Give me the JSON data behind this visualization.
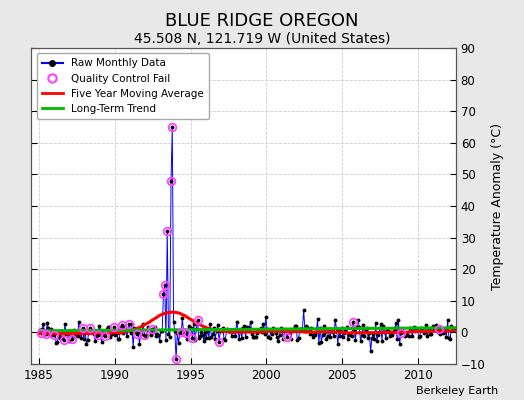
{
  "title": "BLUE RIDGE OREGON",
  "subtitle": "45.508 N, 121.719 W (United States)",
  "ylabel": "Temperature Anomaly (°C)",
  "credit": "Berkeley Earth",
  "xlim": [
    1984.5,
    2012.5
  ],
  "ylim": [
    -10,
    90
  ],
  "yticks": [
    -10,
    0,
    10,
    20,
    30,
    40,
    50,
    60,
    70,
    80,
    90
  ],
  "xticks": [
    1985,
    1990,
    1995,
    2000,
    2005,
    2010
  ],
  "bg_color": "#e8e8e8",
  "plot_bg_color": "#ffffff",
  "raw_color": "#0000ff",
  "raw_marker_color": "#000000",
  "qc_color": "#ff44ff",
  "moving_avg_color": "#ff0000",
  "trend_color": "#00bb00",
  "seed": 42,
  "title_fontsize": 13,
  "subtitle_fontsize": 10,
  "figsize": [
    5.24,
    4.0
  ],
  "dpi": 100
}
